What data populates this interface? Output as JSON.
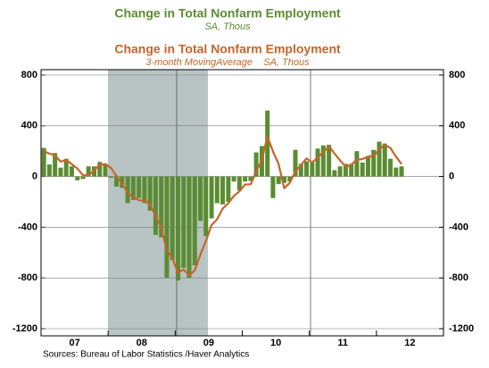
{
  "chart_data": {
    "type": "bar",
    "series": [
      {
        "name": "Change in Total Nonfarm Employment",
        "units": "SA, Thous",
        "type": "bar",
        "color": "#5b8c32",
        "values": [
          225,
          95,
          185,
          70,
          140,
          80,
          -30,
          -20,
          80,
          80,
          115,
          100,
          -10,
          -80,
          -90,
          -210,
          -185,
          -170,
          -210,
          -270,
          -460,
          -480,
          -800,
          -660,
          -820,
          -720,
          -800,
          -700,
          -350,
          -470,
          -330,
          -210,
          -220,
          -200,
          -40,
          -110,
          -40,
          -35,
          190,
          240,
          520,
          -170,
          -60,
          -50,
          -40,
          210,
          100,
          120,
          110,
          220,
          245,
          250,
          50,
          80,
          100,
          100,
          200,
          110,
          160,
          210,
          275,
          260,
          140,
          70,
          80
        ]
      },
      {
        "name": "Change in Total Nonfarm Employment",
        "units": "3-month MovingAverage    SA, Thous",
        "type": "line",
        "color": "#c8642a",
        "values": [
          200,
          180,
          168,
          117,
          132,
          97,
          63,
          10,
          10,
          47,
          92,
          98,
          68,
          3,
          -60,
          -127,
          -162,
          -188,
          -188,
          -217,
          -313,
          -403,
          -580,
          -647,
          -760,
          -733,
          -780,
          -740,
          -617,
          -507,
          -383,
          -337,
          -253,
          -210,
          -153,
          -117,
          -63,
          -62,
          38,
          132,
          317,
          197,
          97,
          -93,
          -50,
          40,
          90,
          143,
          110,
          150,
          192,
          238,
          182,
          127,
          77,
          93,
          133,
          137,
          157,
          160,
          215,
          248,
          225,
          157,
          97
        ]
      }
    ],
    "x": [
      2007.042,
      2007.125,
      2007.208,
      2007.292,
      2007.375,
      2007.458,
      2007.542,
      2007.625,
      2007.708,
      2007.792,
      2007.875,
      2007.958,
      2008.042,
      2008.125,
      2008.208,
      2008.292,
      2008.375,
      2008.458,
      2008.542,
      2008.625,
      2008.708,
      2008.792,
      2008.875,
      2008.958,
      2009.042,
      2009.125,
      2009.208,
      2009.292,
      2009.375,
      2009.458,
      2009.542,
      2009.625,
      2009.708,
      2009.792,
      2009.875,
      2009.958,
      2010.042,
      2010.125,
      2010.208,
      2010.292,
      2010.375,
      2010.458,
      2010.542,
      2010.625,
      2010.708,
      2010.792,
      2010.875,
      2010.958,
      2011.042,
      2011.125,
      2011.208,
      2011.292,
      2011.375,
      2011.458,
      2011.542,
      2011.625,
      2011.708,
      2011.792,
      2011.875,
      2011.958,
      2012.042,
      2012.125,
      2012.208,
      2012.292,
      2012.375
    ],
    "xlim": [
      2007,
      2013
    ],
    "xticks": [
      {
        "value": 2007.5,
        "label": "07"
      },
      {
        "value": 2008.5,
        "label": "08"
      },
      {
        "value": 2009.5,
        "label": "09"
      },
      {
        "value": 2010.5,
        "label": "10"
      },
      {
        "value": 2011.5,
        "label": "11"
      },
      {
        "value": 2012.5,
        "label": "12"
      }
    ],
    "ylim": [
      -1200,
      800
    ],
    "yticks": [
      800,
      400,
      0,
      -400,
      -800,
      -1200
    ],
    "y2lim": [
      -1200,
      800
    ],
    "y2ticks": [
      800,
      400,
      0,
      -400,
      -800,
      -1200
    ],
    "grid": true,
    "source": "Sources:  Bureau of Labor Statistics /Haver Analytics"
  }
}
